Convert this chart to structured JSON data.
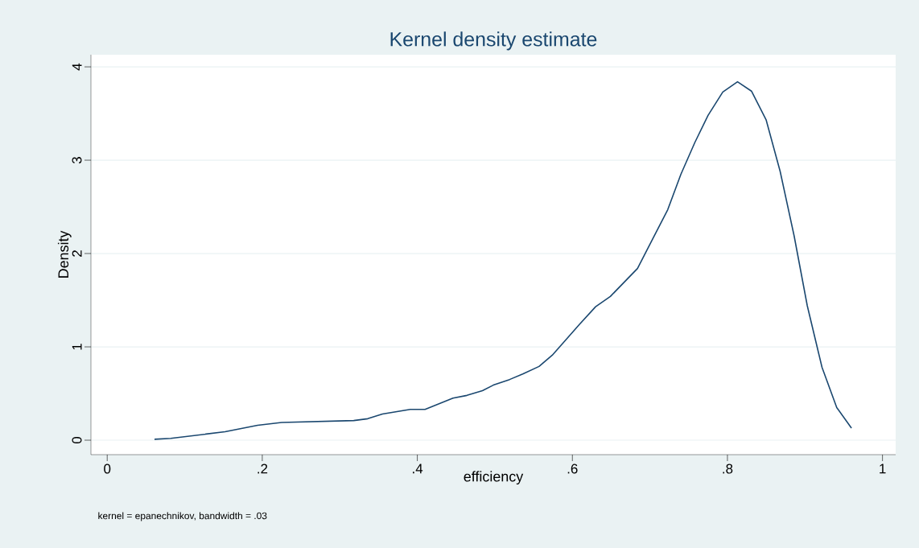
{
  "chart_data": {
    "type": "line",
    "title": "Kernel density estimate",
    "xlabel": "efficiency",
    "ylabel": "Density",
    "annotations": [
      "kernel = epanechnikov, bandwidth = .03"
    ],
    "x": [
      0.061,
      0.082,
      0.152,
      0.194,
      0.225,
      0.318,
      0.336,
      0.355,
      0.391,
      0.41,
      0.446,
      0.464,
      0.484,
      0.498,
      0.519,
      0.536,
      0.557,
      0.574,
      0.609,
      0.63,
      0.649,
      0.684,
      0.702,
      0.723,
      0.74,
      0.758,
      0.775,
      0.794,
      0.813,
      0.831,
      0.85,
      0.868,
      0.886,
      0.903,
      0.922,
      0.941,
      0.96
    ],
    "series": [
      {
        "color": "#1a476f",
        "values": [
          0.01,
          0.02,
          0.09,
          0.16,
          0.19,
          0.21,
          0.23,
          0.28,
          0.33,
          0.33,
          0.45,
          0.48,
          0.53,
          0.59,
          0.65,
          0.71,
          0.79,
          0.91,
          1.24,
          1.43,
          1.54,
          1.84,
          2.13,
          2.47,
          2.85,
          3.19,
          3.48,
          3.73,
          3.84,
          3.74,
          3.43,
          2.88,
          2.19,
          1.44,
          0.78,
          0.35,
          0.13
        ]
      }
    ],
    "xlim": [
      -0.021,
      1.017
    ],
    "ylim": [
      -0.155,
      4.13
    ],
    "xticks": [
      0,
      {
        "value": 0.2,
        "label": ".2"
      },
      {
        "value": 0.4,
        "label": ".4"
      },
      {
        "value": 0.6,
        "label": ".6"
      },
      {
        "value": 0.8,
        "label": ".8"
      },
      1
    ],
    "yticks": [
      0,
      1,
      2,
      3,
      4
    ],
    "grid": "y",
    "marker": "none",
    "line_style": "solid"
  }
}
